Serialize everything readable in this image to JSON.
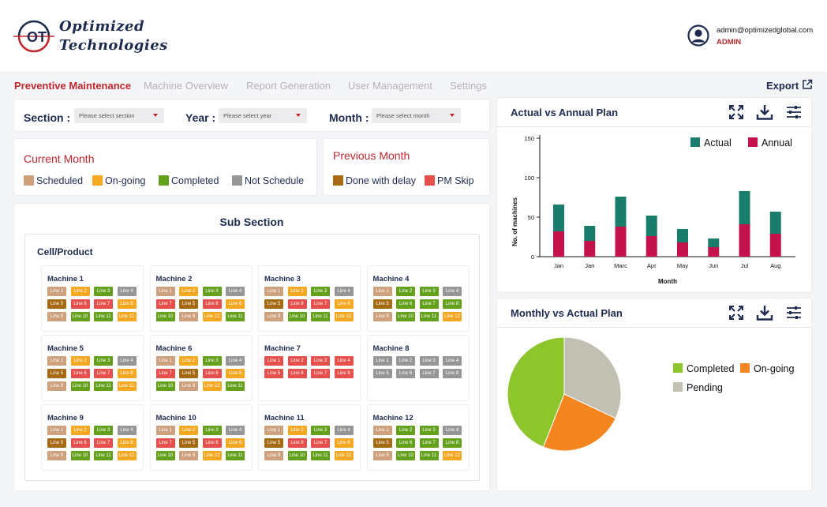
{
  "brand": {
    "line1": "Optimized",
    "line2": "Technologies",
    "logo_letters": "OT"
  },
  "user": {
    "email": "admin@optimizedglobal.com",
    "role": "ADMIN"
  },
  "nav": {
    "items": [
      {
        "label": "Preventive Maintenance",
        "active": true
      },
      {
        "label": "Machine Overview",
        "active": false
      },
      {
        "label": "Report Generation",
        "active": false
      },
      {
        "label": "User Management",
        "active": false
      },
      {
        "label": "Settings",
        "active": false
      }
    ],
    "export_label": "Export"
  },
  "filters": {
    "section": {
      "label": "Section :",
      "placeholder": "Please select section"
    },
    "year": {
      "label": "Year :",
      "placeholder": "Please select year"
    },
    "month": {
      "label": "Month :",
      "placeholder": "Please select month"
    }
  },
  "current_month": {
    "title": "Current Month",
    "legend": [
      {
        "label": "Scheduled",
        "color": "#cfa07c"
      },
      {
        "label": "On-going",
        "color": "#f6a823"
      },
      {
        "label": "Completed",
        "color": "#63a01c"
      },
      {
        "label": "Not Schedule",
        "color": "#969696"
      }
    ]
  },
  "previous_month": {
    "title": "Previous Month",
    "legend": [
      {
        "label": "Done with delay",
        "color": "#a66a13"
      },
      {
        "label": "PM Skip",
        "color": "#e5504d"
      }
    ]
  },
  "colors": {
    "S": "#cfa07c",
    "O": "#f6a823",
    "C": "#63a01c",
    "N": "#969696",
    "D": "#a66a13",
    "P": "#e5504d"
  },
  "sub_section": {
    "title": "Sub Section",
    "cell_title": "Cell/Product",
    "machines": [
      {
        "name": "Machine 1",
        "lines": [
          [
            "Line 1",
            "S"
          ],
          [
            "Line 2",
            "O"
          ],
          [
            "Line 3",
            "C"
          ],
          [
            "Line 4",
            "N"
          ],
          [
            "Line 5",
            "D"
          ],
          [
            "Line 6",
            "P"
          ],
          [
            "Line 7",
            "P"
          ],
          [
            "Line 8",
            "O"
          ],
          [
            "Line 9",
            "S"
          ],
          [
            "Line 10",
            "C"
          ],
          [
            "Line 11",
            "C"
          ],
          [
            "Line 12",
            "O"
          ]
        ]
      },
      {
        "name": "Machine 2",
        "lines": [
          [
            "Line 1",
            "S"
          ],
          [
            "Line 2",
            "O"
          ],
          [
            "Line 3",
            "C"
          ],
          [
            "Line 4",
            "N"
          ],
          [
            "Line 7",
            "P"
          ],
          [
            "Line 5",
            "D"
          ],
          [
            "Line 6",
            "P"
          ],
          [
            "Line 8",
            "O"
          ],
          [
            "Line 10",
            "C"
          ],
          [
            "Line 9",
            "S"
          ],
          [
            "Line 12",
            "O"
          ],
          [
            "Line 11",
            "C"
          ]
        ]
      },
      {
        "name": "Machine 3",
        "lines": [
          [
            "Line 1",
            "S"
          ],
          [
            "Line 2",
            "O"
          ],
          [
            "Line 3",
            "C"
          ],
          [
            "Line 4",
            "N"
          ],
          [
            "Line 5",
            "D"
          ],
          [
            "Line 6",
            "P"
          ],
          [
            "Line 7",
            "P"
          ],
          [
            "Line 8",
            "O"
          ],
          [
            "Line 9",
            "S"
          ],
          [
            "Line 10",
            "C"
          ],
          [
            "Line 11",
            "C"
          ],
          [
            "Line 12",
            "O"
          ]
        ]
      },
      {
        "name": "Machine 4",
        "lines": [
          [
            "Line 1",
            "S"
          ],
          [
            "Line 2",
            "C"
          ],
          [
            "Line 3",
            "C"
          ],
          [
            "Line 4",
            "N"
          ],
          [
            "Line 5",
            "D"
          ],
          [
            "Line 6",
            "C"
          ],
          [
            "Line 7",
            "C"
          ],
          [
            "Line 8",
            "C"
          ],
          [
            "Line 9",
            "S"
          ],
          [
            "Line 10",
            "C"
          ],
          [
            "Line 11",
            "C"
          ],
          [
            "Line 12",
            "O"
          ]
        ]
      },
      {
        "name": "Machine 5",
        "lines": [
          [
            "Line 1",
            "S"
          ],
          [
            "Line 2",
            "O"
          ],
          [
            "Line 3",
            "C"
          ],
          [
            "Line 4",
            "N"
          ],
          [
            "Line 5",
            "D"
          ],
          [
            "Line 6",
            "P"
          ],
          [
            "Line 7",
            "P"
          ],
          [
            "Line 8",
            "O"
          ],
          [
            "Line 9",
            "S"
          ],
          [
            "Line 10",
            "C"
          ],
          [
            "Line 11",
            "C"
          ],
          [
            "Line 12",
            "O"
          ]
        ]
      },
      {
        "name": "Machine 6",
        "lines": [
          [
            "Line 1",
            "S"
          ],
          [
            "Line 2",
            "O"
          ],
          [
            "Line 3",
            "C"
          ],
          [
            "Line 4",
            "N"
          ],
          [
            "Line 7",
            "P"
          ],
          [
            "Line 5",
            "D"
          ],
          [
            "Line 6",
            "P"
          ],
          [
            "Line 8",
            "O"
          ],
          [
            "Line 10",
            "C"
          ],
          [
            "Line 9",
            "S"
          ],
          [
            "Line 12",
            "O"
          ],
          [
            "Line 11",
            "C"
          ]
        ]
      },
      {
        "name": "Machine 7",
        "lines": [
          [
            "Line 1",
            "P"
          ],
          [
            "Line 2",
            "P"
          ],
          [
            "Line 3",
            "P"
          ],
          [
            "Line 4",
            "P"
          ],
          [
            "Line 5",
            "P"
          ],
          [
            "Line 6",
            "P"
          ],
          [
            "Line 7",
            "P"
          ],
          [
            "Line 8",
            "P"
          ]
        ]
      },
      {
        "name": "Machine 8",
        "lines": [
          [
            "Line 1",
            "N"
          ],
          [
            "Line 2",
            "N"
          ],
          [
            "Line 3",
            "N"
          ],
          [
            "Line 4",
            "N"
          ],
          [
            "Line 5",
            "N"
          ],
          [
            "Line 6",
            "N"
          ],
          [
            "Line 7",
            "N"
          ],
          [
            "Line 8",
            "N"
          ]
        ]
      },
      {
        "name": "Machine 9",
        "lines": [
          [
            "Line 1",
            "S"
          ],
          [
            "Line 2",
            "O"
          ],
          [
            "Line 3",
            "C"
          ],
          [
            "Line 4",
            "N"
          ],
          [
            "Line 5",
            "D"
          ],
          [
            "Line 6",
            "P"
          ],
          [
            "Line 7",
            "P"
          ],
          [
            "Line 8",
            "O"
          ],
          [
            "Line 9",
            "S"
          ],
          [
            "Line 10",
            "C"
          ],
          [
            "Line 11",
            "C"
          ],
          [
            "Line 12",
            "O"
          ]
        ]
      },
      {
        "name": "Machine 10",
        "lines": [
          [
            "Line 1",
            "S"
          ],
          [
            "Line 2",
            "O"
          ],
          [
            "Line 3",
            "C"
          ],
          [
            "Line 4",
            "N"
          ],
          [
            "Line 7",
            "P"
          ],
          [
            "Line 5",
            "D"
          ],
          [
            "Line 6",
            "P"
          ],
          [
            "Line 8",
            "O"
          ],
          [
            "Line 10",
            "C"
          ],
          [
            "Line 9",
            "S"
          ],
          [
            "Line 12",
            "O"
          ],
          [
            "Line 11",
            "C"
          ]
        ]
      },
      {
        "name": "Machine 11",
        "lines": [
          [
            "Line 1",
            "S"
          ],
          [
            "Line 2",
            "O"
          ],
          [
            "Line 3",
            "C"
          ],
          [
            "Line 4",
            "N"
          ],
          [
            "Line 5",
            "D"
          ],
          [
            "Line 6",
            "P"
          ],
          [
            "Line 7",
            "P"
          ],
          [
            "Line 8",
            "O"
          ],
          [
            "Line 9",
            "S"
          ],
          [
            "Line 10",
            "C"
          ],
          [
            "Line 11",
            "C"
          ],
          [
            "Line 12",
            "O"
          ]
        ]
      },
      {
        "name": "Machine 12",
        "lines": [
          [
            "Line 1",
            "S"
          ],
          [
            "Line 2",
            "C"
          ],
          [
            "Line 3",
            "C"
          ],
          [
            "Line 4",
            "N"
          ],
          [
            "Line 5",
            "D"
          ],
          [
            "Line 6",
            "C"
          ],
          [
            "Line 7",
            "C"
          ],
          [
            "Line 8",
            "C"
          ],
          [
            "Line 9",
            "S"
          ],
          [
            "Line 10",
            "C"
          ],
          [
            "Line 11",
            "C"
          ],
          [
            "Line 12",
            "O"
          ]
        ]
      }
    ]
  },
  "bar_panel": {
    "title": "Actual vs Annual Plan",
    "tools": [
      "expand-icon",
      "download-icon",
      "filter-settings-icon"
    ]
  },
  "pie_panel": {
    "title": "Monthly vs Actual Plan",
    "tools": [
      "expand-icon",
      "download-icon",
      "filter-settings-icon"
    ]
  },
  "chart_data": [
    {
      "type": "bar",
      "stacked": true,
      "categories": [
        "Jan",
        "Jan",
        "Marc",
        "Apr",
        "May",
        "Jun",
        "Jul",
        "Aug"
      ],
      "series": [
        {
          "name": "Actual",
          "color": "#1a7d6b",
          "values": [
            34,
            19,
            38,
            26,
            17,
            11,
            42,
            28
          ]
        },
        {
          "name": "Annual",
          "color": "#c4124d",
          "values": [
            32,
            20,
            38,
            26,
            18,
            12,
            41,
            29
          ]
        }
      ],
      "xlabel": "Month",
      "ylabel": "No. of machines",
      "ylim": [
        0,
        150
      ],
      "yticks": [
        0,
        50,
        100,
        150
      ],
      "legend": "top-right"
    },
    {
      "type": "pie",
      "slices": [
        {
          "label": "Completed",
          "value": 44,
          "color": "#8cc52c"
        },
        {
          "label": "On-going",
          "value": 24,
          "color": "#f5861f"
        },
        {
          "label": "Pending",
          "value": 32,
          "color": "#c1c0b3"
        }
      ],
      "legend": "right"
    }
  ]
}
